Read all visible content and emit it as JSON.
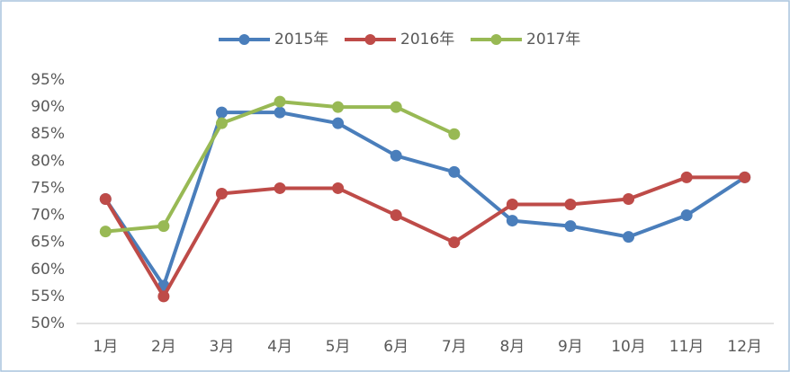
{
  "chart_data": {
    "type": "line",
    "categories": [
      "1月",
      "2月",
      "3月",
      "4月",
      "5月",
      "6月",
      "7月",
      "8月",
      "9月",
      "10月",
      "11月",
      "12月"
    ],
    "series": [
      {
        "name": "2015年",
        "color": "#4a7ebb",
        "values": [
          73,
          57,
          89,
          89,
          87,
          81,
          78,
          69,
          68,
          66,
          70,
          77
        ]
      },
      {
        "name": "2016年",
        "color": "#be4b48",
        "values": [
          73,
          55,
          74,
          75,
          75,
          70,
          65,
          72,
          72,
          73,
          77,
          77
        ]
      },
      {
        "name": "2017年",
        "color": "#98b954",
        "values": [
          67,
          68,
          87,
          91,
          90,
          90,
          85,
          null,
          null,
          null,
          null,
          null
        ]
      }
    ],
    "ylim": [
      50,
      95
    ],
    "yticks": [
      {
        "value": 50,
        "label": "50%"
      },
      {
        "value": 55,
        "label": "55%"
      },
      {
        "value": 60,
        "label": "60%"
      },
      {
        "value": 65,
        "label": "65%"
      },
      {
        "value": 70,
        "label": "70%"
      },
      {
        "value": 75,
        "label": "75%"
      },
      {
        "value": 80,
        "label": "80%"
      },
      {
        "value": 85,
        "label": "85%"
      },
      {
        "value": 90,
        "label": "90%"
      },
      {
        "value": 95,
        "label": "95%"
      }
    ],
    "grid": false,
    "legend": "top"
  }
}
